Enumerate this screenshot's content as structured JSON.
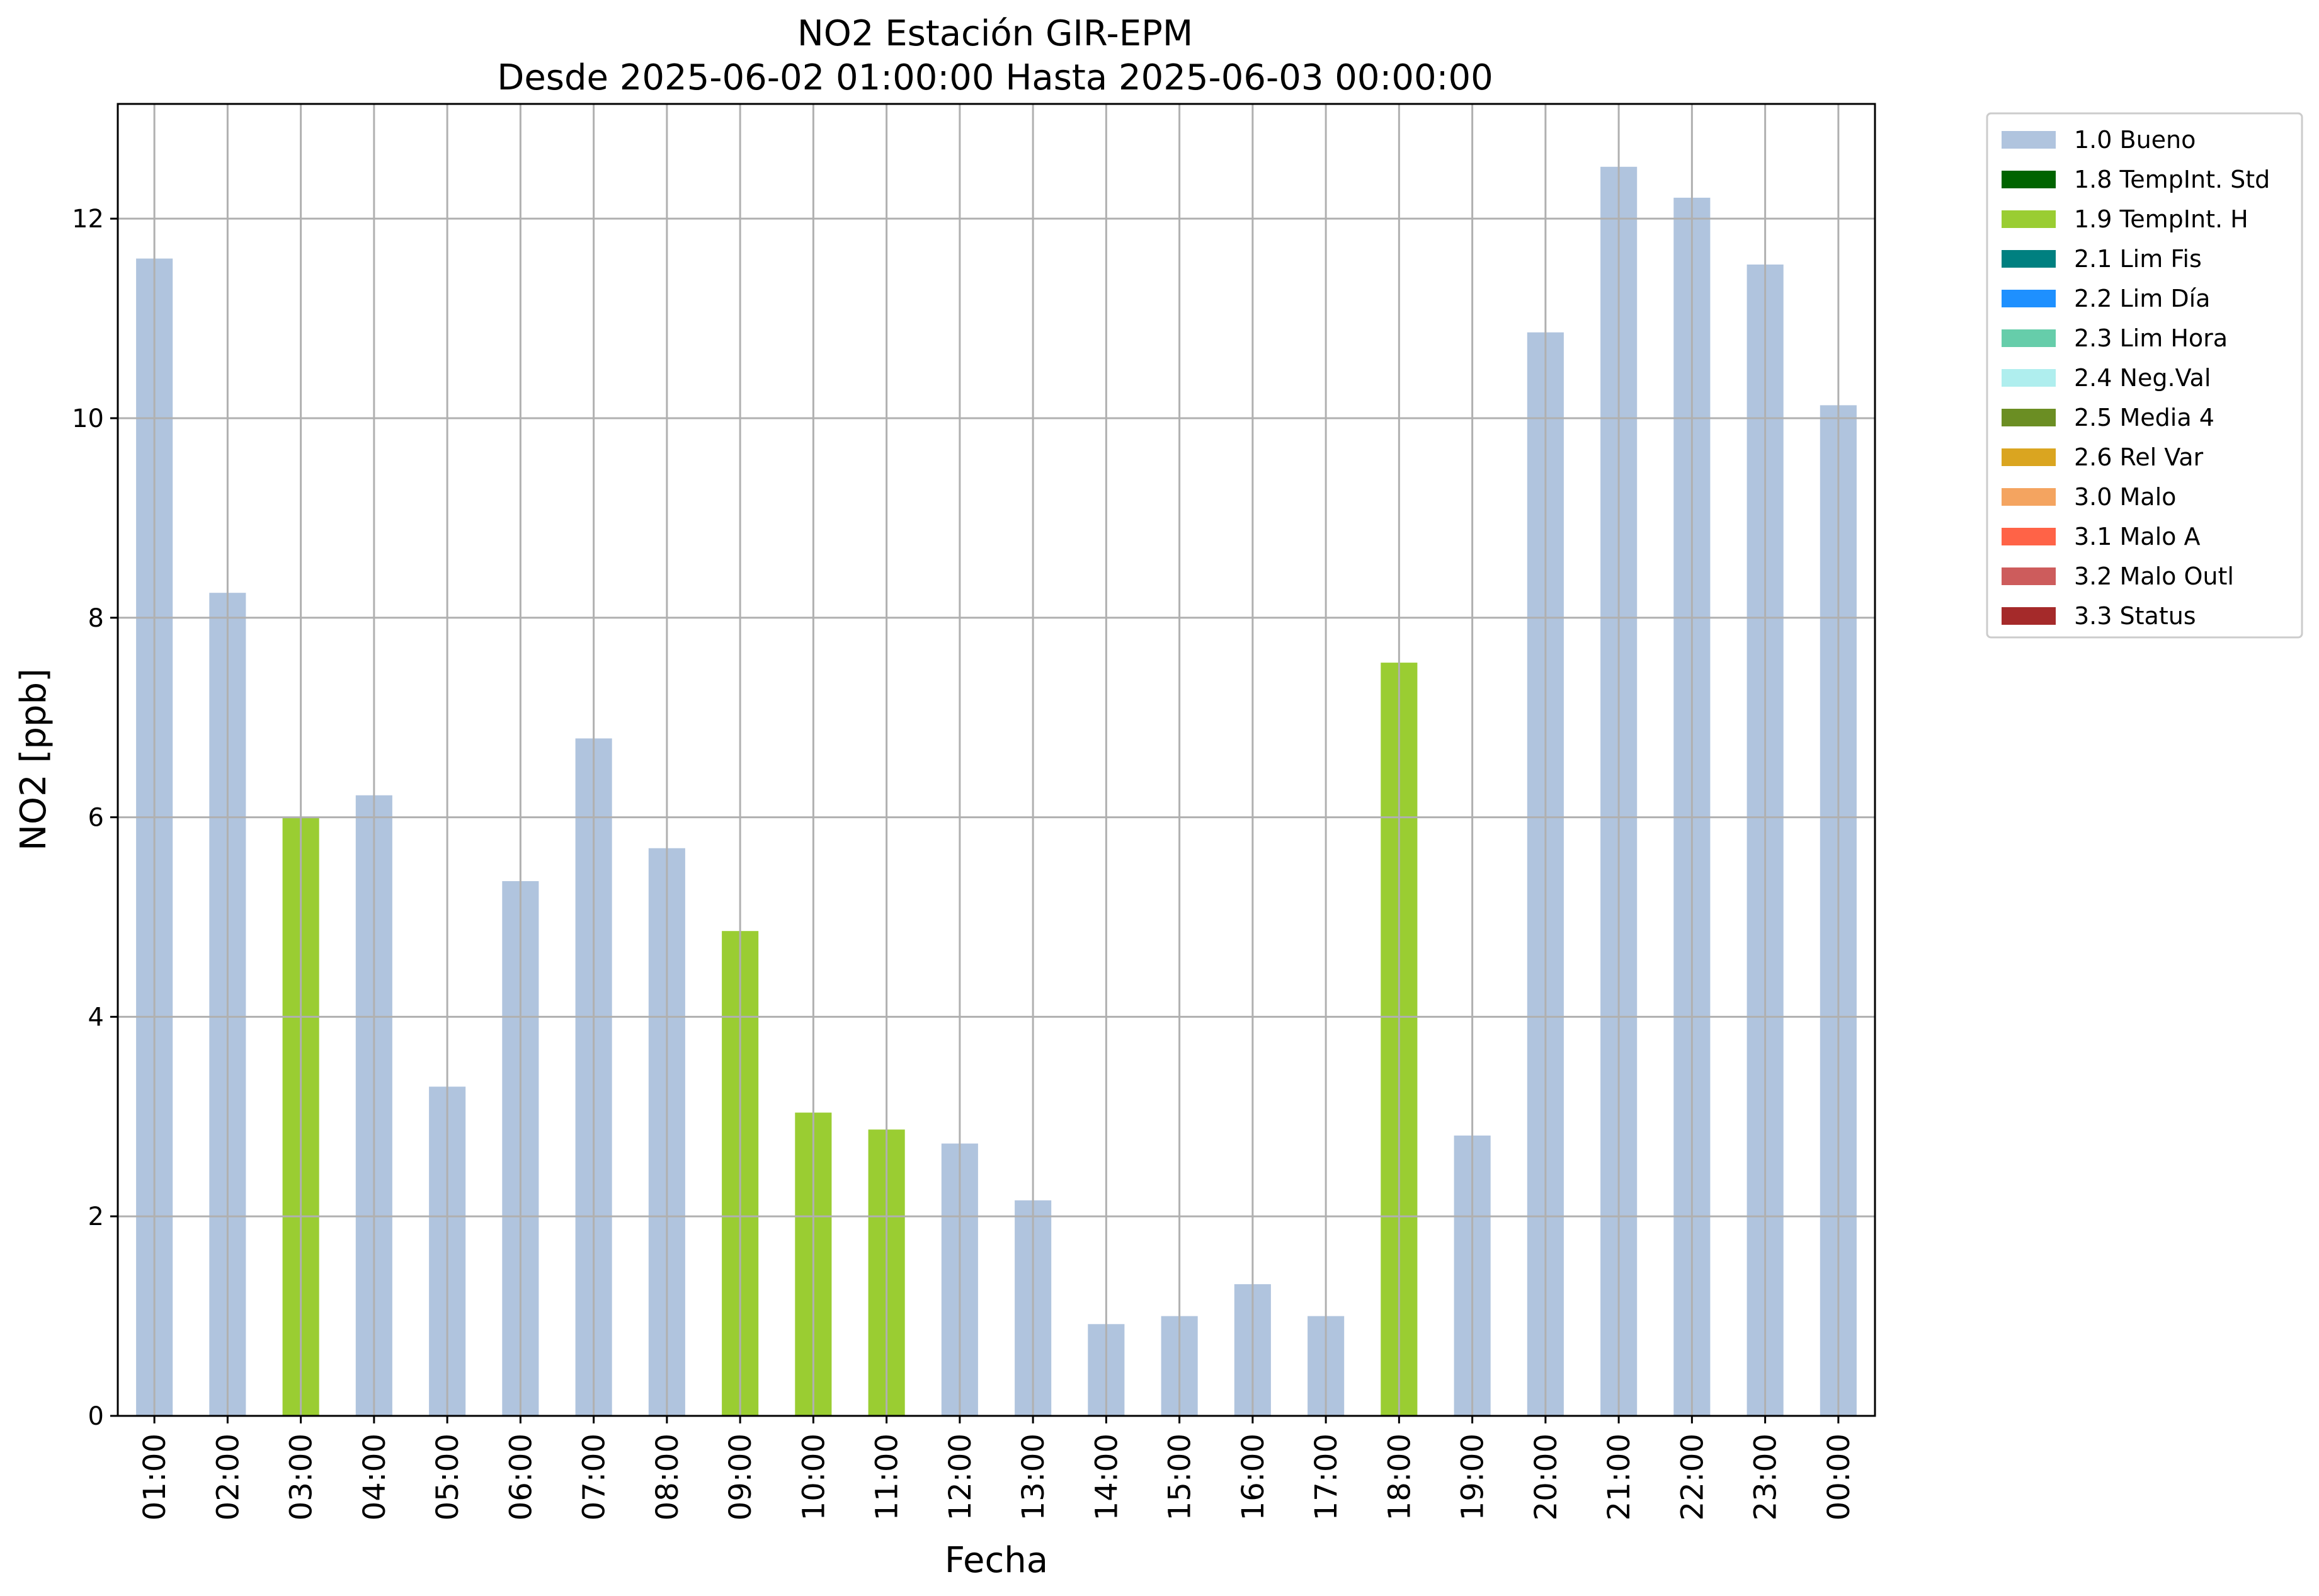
{
  "chart_data": {
    "type": "bar",
    "title": "NO2 Estación GIR-EPM",
    "subtitle": "Desde 2025-06-02 01:00:00 Hasta 2025-06-03 00:00:00",
    "xlabel": "Fecha",
    "ylabel": "NO2 [ppb]",
    "ylim": [
      0,
      13.15
    ],
    "yticks": [
      0,
      2,
      4,
      6,
      8,
      10,
      12
    ],
    "grid": true,
    "legend_position": "outside-top-right",
    "categories": [
      "01:00",
      "02:00",
      "03:00",
      "04:00",
      "05:00",
      "06:00",
      "07:00",
      "08:00",
      "09:00",
      "10:00",
      "11:00",
      "12:00",
      "13:00",
      "14:00",
      "15:00",
      "16:00",
      "17:00",
      "18:00",
      "19:00",
      "20:00",
      "21:00",
      "22:00",
      "23:00",
      "00:00"
    ],
    "values": [
      11.6,
      8.25,
      6.0,
      6.22,
      3.3,
      5.36,
      6.79,
      5.69,
      4.86,
      3.04,
      2.87,
      2.73,
      2.16,
      0.92,
      1.0,
      1.32,
      1.0,
      7.55,
      2.81,
      10.86,
      12.52,
      12.21,
      11.54,
      10.13
    ],
    "flags": [
      "1.0 Bueno",
      "1.0 Bueno",
      "1.9 TempInt. H",
      "1.0 Bueno",
      "1.0 Bueno",
      "1.0 Bueno",
      "1.0 Bueno",
      "1.0 Bueno",
      "1.9 TempInt. H",
      "1.9 TempInt. H",
      "1.9 TempInt. H",
      "1.0 Bueno",
      "1.0 Bueno",
      "1.0 Bueno",
      "1.0 Bueno",
      "1.0 Bueno",
      "1.0 Bueno",
      "1.9 TempInt. H",
      "1.0 Bueno",
      "1.0 Bueno",
      "1.0 Bueno",
      "1.0 Bueno",
      "1.0 Bueno",
      "1.0 Bueno"
    ],
    "legend": [
      {
        "label": "1.0 Bueno",
        "color": "#b0c4de"
      },
      {
        "label": "1.8 TempInt. Std",
        "color": "#006400"
      },
      {
        "label": "1.9 TempInt. H",
        "color": "#9acd32"
      },
      {
        "label": "2.1 Lim Fis",
        "color": "#008080"
      },
      {
        "label": "2.2 Lim Día",
        "color": "#1e90ff"
      },
      {
        "label": "2.3 Lim Hora",
        "color": "#66cdaa"
      },
      {
        "label": "2.4 Neg.Val",
        "color": "#afeeee"
      },
      {
        "label": "2.5 Media 4",
        "color": "#6b8e23"
      },
      {
        "label": "2.6 Rel Var",
        "color": "#daa520"
      },
      {
        "label": "3.0 Malo",
        "color": "#f4a460"
      },
      {
        "label": "3.1 Malo A",
        "color": "#ff6347"
      },
      {
        "label": "3.2 Malo Outl",
        "color": "#cd5c5c"
      },
      {
        "label": "3.3 Status",
        "color": "#a52a2a"
      }
    ]
  }
}
